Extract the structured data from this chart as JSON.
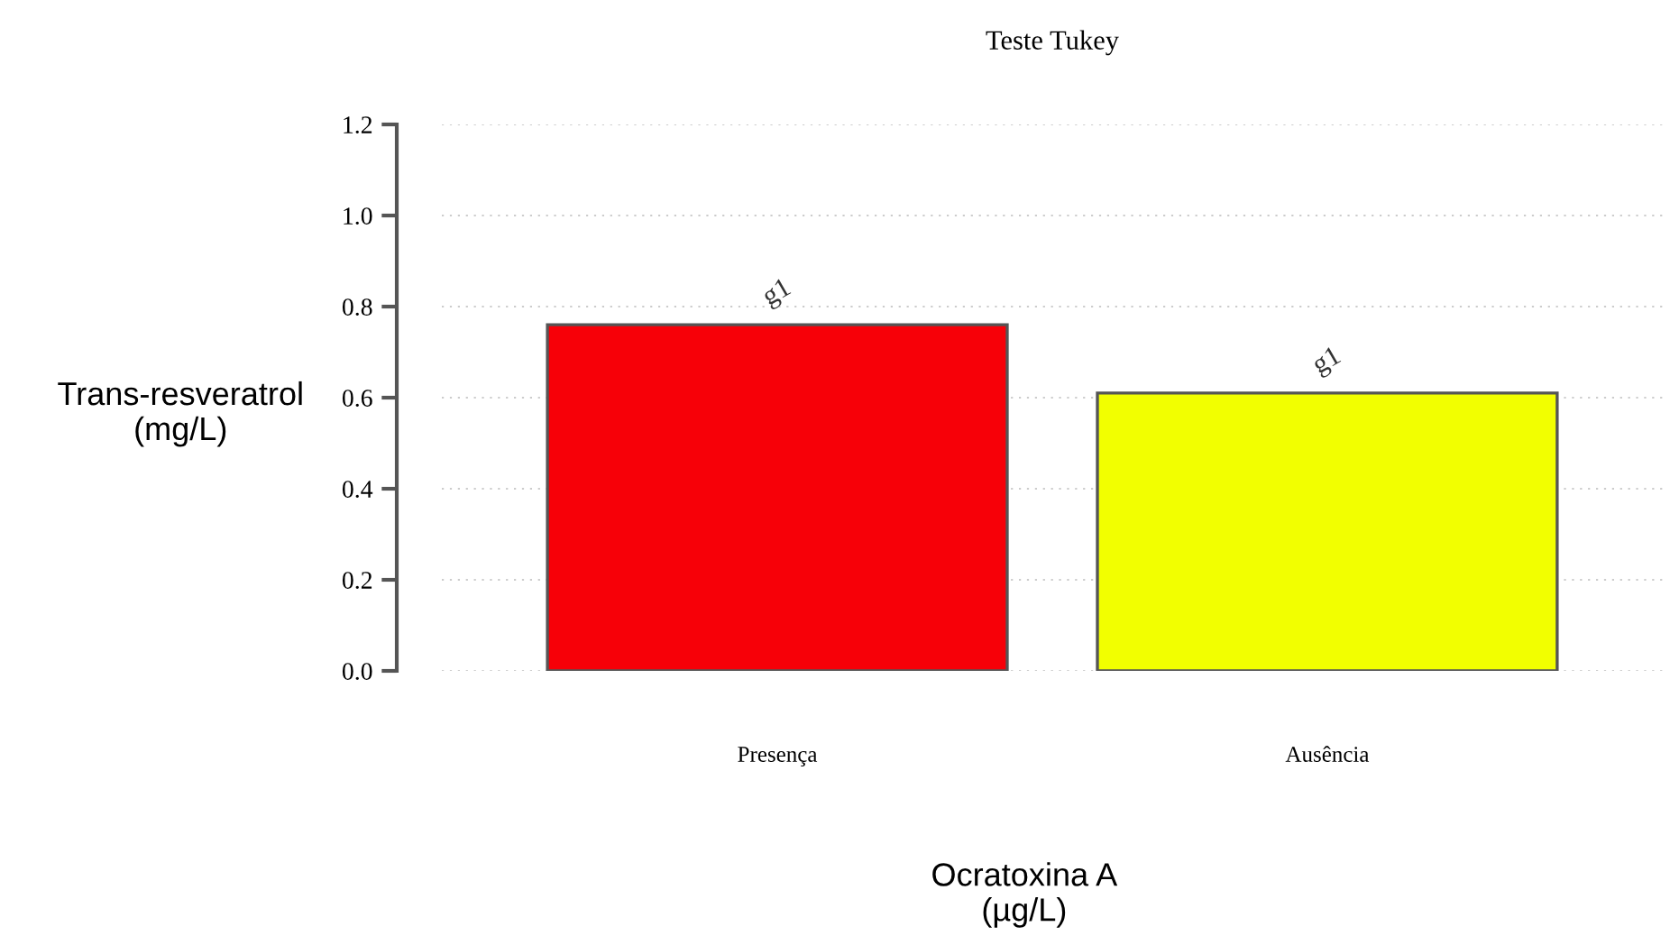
{
  "chart_data": {
    "type": "bar",
    "title": "Teste Tukey",
    "xlabel": "Ocratoxina A\n(µg/L)",
    "ylabel": "Trans-resveratrol\n(mg/L)",
    "categories": [
      "Presença",
      "Ausência"
    ],
    "values": [
      0.76,
      0.61
    ],
    "colors": [
      "#f70008",
      "#f2ff00"
    ],
    "value_labels": [
      "g1",
      "g1"
    ],
    "ylim": [
      0,
      1.2
    ],
    "yticks": [
      {
        "value": 0,
        "label": "0.0"
      },
      0.2,
      0.4,
      0.6,
      0.8,
      {
        "value": 1,
        "label": "1.0"
      },
      1.2
    ],
    "grid": "y"
  }
}
